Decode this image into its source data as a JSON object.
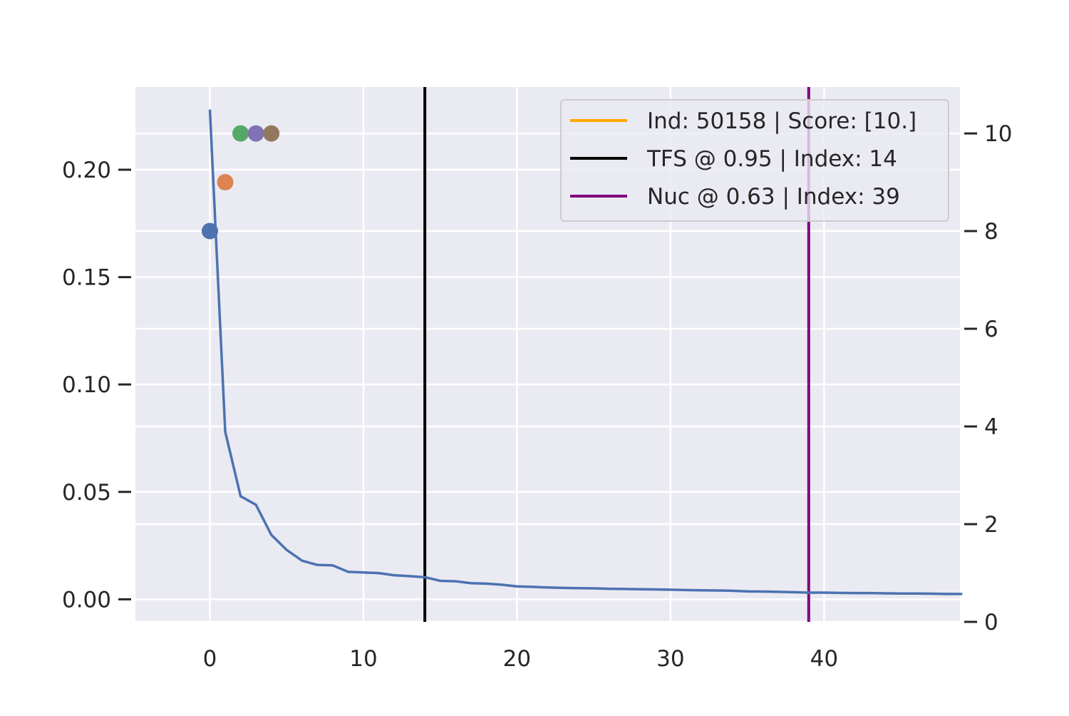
{
  "chart_data": {
    "type": "line",
    "title": "",
    "xlabel": "",
    "ylabel": "",
    "y2label": "",
    "xlim": [
      -4.85,
      48.85
    ],
    "ylim": [
      -0.0105,
      0.2385
    ],
    "y2lim": [
      0,
      10.95
    ],
    "xticks": [
      0,
      10,
      20,
      30,
      40
    ],
    "yticks": [
      0.0,
      0.05,
      0.1,
      0.15,
      0.2
    ],
    "ytick_labels": [
      "0.00",
      "0.05",
      "0.10",
      "0.15",
      "0.20"
    ],
    "y2ticks": [
      0,
      2,
      4,
      6,
      8,
      10
    ],
    "grid": true,
    "legend_position": "top-right",
    "legend": [
      {
        "label": "Ind: 50158 | Score: [10.]",
        "color": "#FFA500"
      },
      {
        "label": "TFS @ 0.95 | Index: 14",
        "color": "#000000"
      },
      {
        "label": "Nuc @ 0.63 | Index: 39",
        "color": "#800080"
      }
    ],
    "series": [
      {
        "color": "#4C72B0",
        "x": [
          0,
          1,
          2,
          3,
          4,
          5,
          6,
          7,
          8,
          9,
          10,
          11,
          12,
          13,
          14,
          15,
          16,
          17,
          18,
          19,
          20,
          21,
          22,
          23,
          24,
          25,
          26,
          27,
          28,
          29,
          30,
          31,
          32,
          33,
          34,
          35,
          36,
          37,
          38,
          39,
          40,
          41,
          42,
          43,
          44,
          45,
          46,
          47,
          48,
          49
        ],
        "values": [
          0.228,
          0.078,
          0.048,
          0.044,
          0.03,
          0.023,
          0.018,
          0.016,
          0.0158,
          0.0128,
          0.0125,
          0.0122,
          0.0112,
          0.0108,
          0.0103,
          0.0086,
          0.0084,
          0.0075,
          0.0073,
          0.0068,
          0.006,
          0.0058,
          0.0055,
          0.0053,
          0.0052,
          0.0051,
          0.0049,
          0.0048,
          0.0047,
          0.0046,
          0.0045,
          0.0043,
          0.0042,
          0.0041,
          0.004,
          0.0037,
          0.0036,
          0.0035,
          0.0033,
          0.0031,
          0.0031,
          0.003,
          0.0029,
          0.0029,
          0.0028,
          0.0027,
          0.0027,
          0.0026,
          0.0025,
          0.0025
        ]
      }
    ],
    "points": [
      {
        "x": 0,
        "y2": 8.0,
        "color": "#4C72B0"
      },
      {
        "x": 1,
        "y2": 9.0,
        "color": "#DD8452"
      },
      {
        "x": 2,
        "y2": 10.0,
        "color": "#55A868"
      },
      {
        "x": 3,
        "y2": 10.0,
        "color": "#8172B3"
      },
      {
        "x": 4,
        "y2": 10.0,
        "color": "#937860"
      }
    ],
    "vlines": [
      {
        "x": 14,
        "color": "#000000"
      },
      {
        "x": 39,
        "color": "#800080"
      }
    ]
  },
  "colors": {
    "plot_background": "#EAEAF2",
    "grid": "#FFFFFF",
    "text": "#262626",
    "legend_edge": "#CCCCCC"
  }
}
